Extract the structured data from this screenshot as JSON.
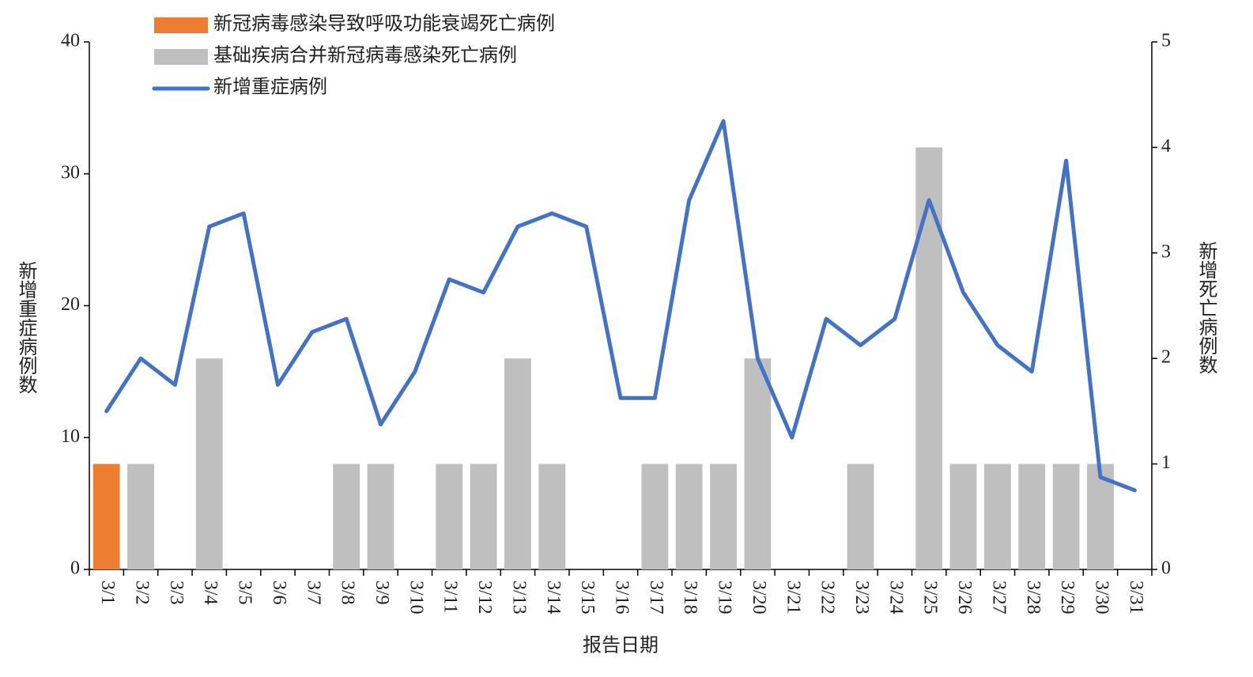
{
  "chart_data": {
    "type": "combo",
    "x_label": "报告日期",
    "y_label": "新增重症病例数",
    "y2_label": "新增死亡病例数",
    "categories": [
      "3/1",
      "3/2",
      "3/3",
      "3/4",
      "3/5",
      "3/6",
      "3/7",
      "3/8",
      "3/9",
      "3/10",
      "3/11",
      "3/12",
      "3/13",
      "3/14",
      "3/15",
      "3/16",
      "3/17",
      "3/18",
      "3/19",
      "3/20",
      "3/21",
      "3/22",
      "3/23",
      "3/24",
      "3/25",
      "3/26",
      "3/27",
      "3/28",
      "3/29",
      "3/30",
      "3/31"
    ],
    "series": [
      {
        "name": "新冠病毒感染导致呼吸功能衰竭死亡病例",
        "type": "bar",
        "axis": "y2",
        "color": "#ed7d31",
        "values": [
          1,
          0,
          0,
          0,
          0,
          0,
          0,
          0,
          0,
          0,
          0,
          0,
          0,
          0,
          0,
          0,
          0,
          0,
          0,
          0,
          0,
          0,
          0,
          0,
          0,
          0,
          0,
          0,
          0,
          0,
          0
        ]
      },
      {
        "name": "基础疾病合并新冠病毒感染死亡病例",
        "type": "bar",
        "axis": "y2",
        "color": "#bfbfbf",
        "values": [
          0,
          1,
          0,
          2,
          0,
          0,
          0,
          1,
          1,
          0,
          1,
          1,
          2,
          1,
          0,
          0,
          1,
          1,
          1,
          2,
          0,
          0,
          1,
          0,
          4,
          1,
          1,
          1,
          1,
          1,
          0
        ]
      },
      {
        "name": "新增重症病例",
        "type": "line",
        "axis": "y",
        "color": "#4472c4",
        "values": [
          12,
          16,
          14,
          26,
          27,
          14,
          18,
          19,
          11,
          15,
          22,
          21,
          26,
          27,
          26,
          13,
          13,
          28,
          34,
          16,
          10,
          19,
          17,
          19,
          28,
          21,
          17,
          15,
          31,
          7,
          6
        ]
      }
    ],
    "ylim": [
      0,
      40
    ],
    "yticks": [
      0,
      10,
      20,
      30,
      40
    ],
    "y2lim": [
      0,
      5
    ],
    "y2ticks": [
      0,
      1,
      2,
      3,
      4,
      5
    ],
    "legend": "upper left"
  }
}
